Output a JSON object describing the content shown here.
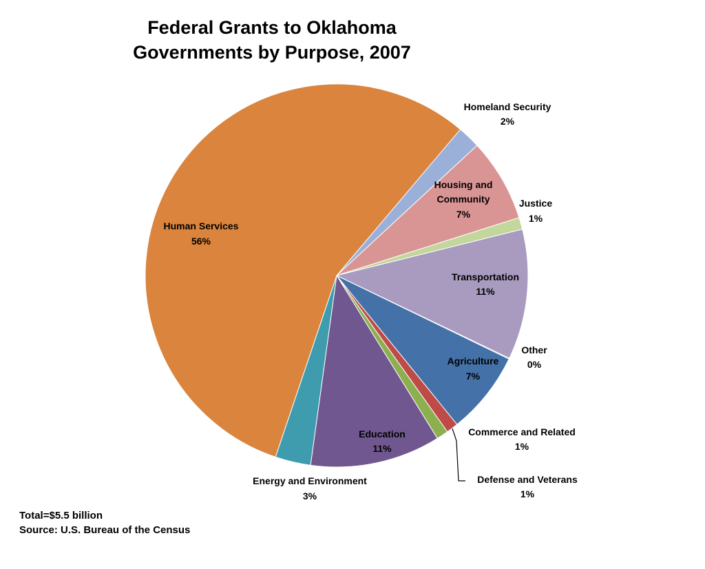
{
  "chart_data": {
    "type": "pie",
    "title": [
      "Federal Grants to Oklahoma",
      "Governments by Purpose, 2007"
    ],
    "slices": [
      {
        "key": "homeland",
        "name": "Homeland Security",
        "value": 2,
        "pct_label": "2%",
        "color": "#9BB0D8"
      },
      {
        "key": "housing",
        "name": "Housing and Community",
        "name_lines": [
          "Housing and",
          "Community"
        ],
        "value": 7,
        "pct_label": "7%",
        "color": "#D99594"
      },
      {
        "key": "justice",
        "name": "Justice",
        "value": 1,
        "pct_label": "1%",
        "color": "#C3D69B"
      },
      {
        "key": "transportation",
        "name": "Transportation",
        "value": 11,
        "pct_label": "11%",
        "color": "#A89BBF"
      },
      {
        "key": "other",
        "name": "Other",
        "value": 0,
        "pct_label": "0%",
        "color": "#4BACC6"
      },
      {
        "key": "agriculture",
        "name": "Agriculture",
        "value": 7,
        "pct_label": "7%",
        "color": "#4471A7"
      },
      {
        "key": "commerce",
        "name": "Commerce and Related",
        "value": 1,
        "pct_label": "1%",
        "color": "#BE4B48"
      },
      {
        "key": "defense",
        "name": "Defense and Veterans",
        "value": 1,
        "pct_label": "1%",
        "color": "#8CB04F"
      },
      {
        "key": "education",
        "name": "Education",
        "value": 11,
        "pct_label": "11%",
        "color": "#71578F"
      },
      {
        "key": "energy",
        "name": "Energy and Environment",
        "value": 3,
        "pct_label": "3%",
        "color": "#3F9CAE"
      },
      {
        "key": "human",
        "name": "Human Services",
        "value": 56,
        "pct_label": "56%",
        "color": "#DA843D"
      }
    ],
    "footnotes": [
      "Total=$5.5 billion",
      "Source: U.S. Bureau of the Census"
    ]
  }
}
